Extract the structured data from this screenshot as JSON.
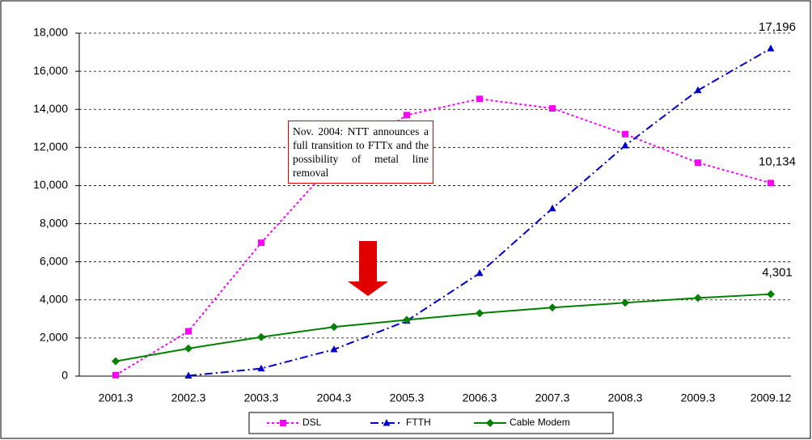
{
  "chart_data": {
    "type": "line",
    "categories": [
      "2001.3",
      "2002.3",
      "2003.3",
      "2004.3",
      "2005.3",
      "2006.3",
      "2007.3",
      "2008.3",
      "2009.3",
      "2009.12"
    ],
    "series": [
      {
        "name": "DSL",
        "color": "#ff00ff",
        "dash": "dot",
        "marker": "square",
        "values": [
          50,
          2350,
          7000,
          11200,
          13700,
          14550,
          14050,
          12700,
          11200,
          10134
        ],
        "value_labels": [
          null,
          null,
          null,
          null,
          null,
          null,
          null,
          null,
          null,
          "10,134"
        ]
      },
      {
        "name": "FTTH",
        "color": "#0000cc",
        "dash": "dashdot",
        "marker": "triangle",
        "values": [
          null,
          20,
          400,
          1400,
          2900,
          5400,
          8800,
          12100,
          15000,
          17196
        ],
        "value_labels": [
          null,
          null,
          null,
          null,
          null,
          null,
          null,
          null,
          null,
          "17,196"
        ]
      },
      {
        "name": "Cable Modem",
        "color": "#008000",
        "dash": "solid",
        "marker": "diamond",
        "values": [
          780,
          1450,
          2050,
          2580,
          2950,
          3300,
          3600,
          3850,
          4100,
          4301
        ],
        "value_labels": [
          null,
          null,
          null,
          null,
          null,
          null,
          null,
          null,
          null,
          "4,301"
        ]
      }
    ],
    "ylim": [
      0,
      18000
    ],
    "yticks": [
      0,
      {
        "value": 2000,
        "label": "2,000"
      },
      {
        "value": 4000,
        "label": "4,000"
      },
      {
        "value": 6000,
        "label": "6,000"
      },
      {
        "value": 8000,
        "label": "8,000"
      },
      {
        "value": 10000,
        "label": "10,000"
      },
      {
        "value": 12000,
        "label": "12,000"
      },
      {
        "value": 14000,
        "label": "14,000"
      },
      {
        "value": 16000,
        "label": "16,000"
      },
      {
        "value": 18000,
        "label": "18,000"
      }
    ],
    "grid": true,
    "annotation": "Nov. 2004: NTT announces a full transition to FTTx and the possibility of metal line removal"
  }
}
